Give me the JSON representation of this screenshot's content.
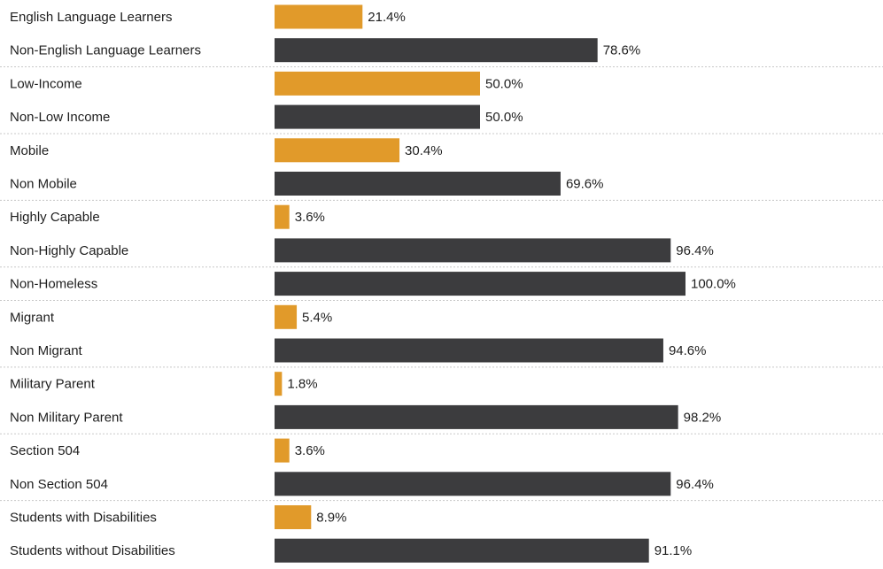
{
  "chart_data": {
    "type": "bar",
    "orientation": "horizontal",
    "xlim": [
      0,
      100
    ],
    "grid": false,
    "colors": {
      "highlight": "#e19a2a",
      "base": "#3c3c3e"
    },
    "categories": [
      "English Language Learners",
      "Non-English Language Learners",
      "Low-Income",
      "Non-Low Income",
      "Mobile",
      "Non Mobile",
      "Highly Capable",
      "Non-Highly Capable",
      "Non-Homeless",
      "Migrant",
      "Non Migrant",
      "Military Parent",
      "Non Military Parent",
      "Section 504",
      "Non Section 504",
      "Students with Disabilities",
      "Students without Disabilities"
    ],
    "values": [
      21.4,
      78.6,
      50.0,
      50.0,
      30.4,
      69.6,
      3.6,
      96.4,
      100.0,
      5.4,
      94.6,
      1.8,
      98.2,
      3.6,
      96.4,
      8.9,
      91.1
    ],
    "value_labels": [
      "21.4%",
      "78.6%",
      "50.0%",
      "50.0%",
      "30.4%",
      "69.6%",
      "3.6%",
      "96.4%",
      "100.0%",
      "5.4%",
      "94.6%",
      "1.8%",
      "98.2%",
      "3.6%",
      "96.4%",
      "8.9%",
      "91.1%"
    ],
    "bar_color_keys": [
      "highlight",
      "base",
      "highlight",
      "base",
      "highlight",
      "base",
      "highlight",
      "base",
      "base",
      "highlight",
      "base",
      "highlight",
      "base",
      "highlight",
      "base",
      "highlight",
      "base"
    ]
  }
}
